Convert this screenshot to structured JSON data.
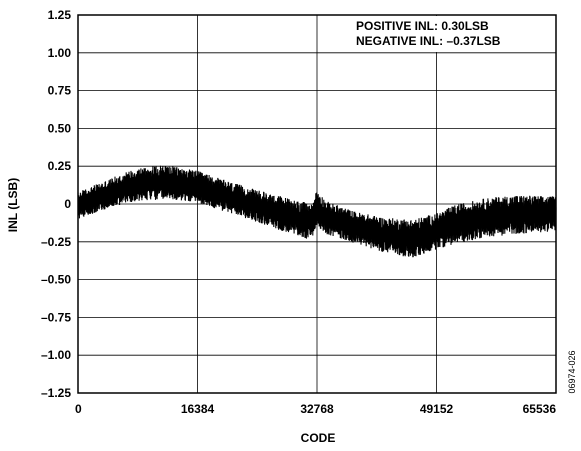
{
  "chart_data": {
    "type": "line",
    "xlabel": "CODE",
    "ylabel": "INL (LSB)",
    "xlim": [
      0,
      65536
    ],
    "ylim": [
      -1.25,
      1.25
    ],
    "x_ticks": [
      "0",
      "16384",
      "32768",
      "49152",
      "65536"
    ],
    "x_tick_values": [
      0,
      16384,
      32768,
      49152,
      65536
    ],
    "y_ticks": [
      "1.25",
      "1.00",
      "0.75",
      "0.50",
      "0.25",
      "0",
      "–0.25",
      "–0.50",
      "–0.75",
      "–1.00",
      "–1.25"
    ],
    "y_tick_values": [
      1.25,
      1.0,
      0.75,
      0.5,
      0.25,
      0,
      -0.25,
      -0.5,
      -0.75,
      -1.0,
      -1.25
    ],
    "grid": true,
    "annotations": [
      "POSITIVE INL: 0.30LSB",
      "NEGATIVE INL: –0.37LSB"
    ],
    "figure_id": "06974-026",
    "series": [
      {
        "color": "#000000",
        "envelope": {
          "x": [
            0,
            4000,
            8000,
            12000,
            16384,
            20000,
            24000,
            28000,
            32000,
            32768,
            34000,
            38000,
            42000,
            46000,
            49152,
            52000,
            56000,
            60000,
            65536
          ],
          "upper": [
            0.08,
            0.16,
            0.24,
            0.26,
            0.22,
            0.16,
            0.1,
            0.05,
            0.0,
            0.1,
            0.02,
            -0.05,
            -0.09,
            -0.1,
            -0.06,
            0.0,
            0.04,
            0.06,
            0.05
          ],
          "lower": [
            -0.1,
            -0.03,
            0.02,
            0.03,
            0.01,
            -0.05,
            -0.11,
            -0.18,
            -0.24,
            -0.14,
            -0.2,
            -0.26,
            -0.32,
            -0.36,
            -0.3,
            -0.26,
            -0.22,
            -0.2,
            -0.18
          ]
        },
        "positive_inl": 0.3,
        "negative_inl": -0.37
      }
    ]
  }
}
